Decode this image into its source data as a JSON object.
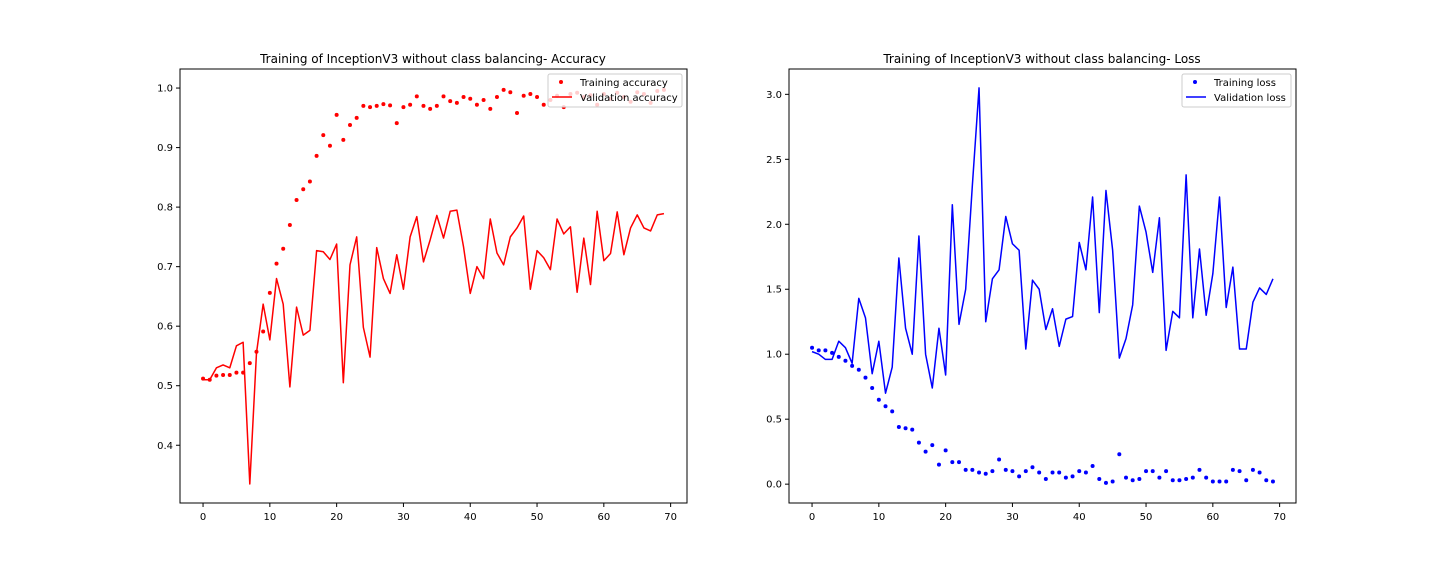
{
  "chart_data": [
    {
      "type": "line",
      "title": "Training of InceptionV3 without class balancing- Accuracy",
      "xlim": [
        -3.45,
        72.45
      ],
      "ylim": [
        0.303,
        1.032
      ],
      "xticks": [
        0,
        10,
        20,
        30,
        40,
        50,
        60,
        70
      ],
      "yticks": [
        0.4,
        0.5,
        0.6,
        0.7,
        0.8,
        0.9,
        1.0
      ],
      "ytick_labels": [
        "0.4",
        "0.5",
        "0.6",
        "0.7",
        "0.8",
        "0.9",
        "1.0"
      ],
      "legend_position": "top-right",
      "color": "#ff0000",
      "series": [
        {
          "name": "Training accuracy",
          "style": "dots",
          "x": [
            0,
            1,
            2,
            3,
            4,
            5,
            6,
            7,
            8,
            9,
            10,
            11,
            12,
            13,
            14,
            15,
            16,
            17,
            18,
            19,
            20,
            21,
            22,
            23,
            24,
            25,
            26,
            27,
            28,
            29,
            30,
            31,
            32,
            33,
            34,
            35,
            36,
            37,
            38,
            39,
            40,
            41,
            42,
            43,
            44,
            45,
            46,
            47,
            48,
            49,
            50,
            51,
            52,
            53,
            54,
            55,
            56,
            57,
            58,
            59,
            60,
            61,
            62,
            63,
            64,
            65,
            66,
            67,
            68,
            69
          ],
          "values": [
            0.512,
            0.51,
            0.517,
            0.518,
            0.518,
            0.522,
            0.522,
            0.538,
            0.557,
            0.591,
            0.656,
            0.705,
            0.73,
            0.77,
            0.812,
            0.83,
            0.843,
            0.886,
            0.921,
            0.903,
            0.955,
            0.913,
            0.938,
            0.95,
            0.97,
            0.968,
            0.97,
            0.973,
            0.971,
            0.941,
            0.968,
            0.972,
            0.986,
            0.97,
            0.965,
            0.97,
            0.986,
            0.978,
            0.975,
            0.985,
            0.982,
            0.972,
            0.98,
            0.965,
            0.985,
            0.997,
            0.993,
            0.958,
            0.987,
            0.99,
            0.985,
            0.972,
            0.98,
            0.987,
            0.968,
            0.99,
            0.992,
            0.985,
            0.988,
            0.972,
            0.99,
            0.982,
            0.992,
            0.985,
            0.977,
            0.993,
            0.99,
            0.975,
            0.995,
            0.997
          ]
        },
        {
          "name": "Validation accuracy",
          "style": "line",
          "x": [
            0,
            1,
            2,
            3,
            4,
            5,
            6,
            7,
            8,
            9,
            10,
            11,
            12,
            13,
            14,
            15,
            16,
            17,
            18,
            19,
            20,
            21,
            22,
            23,
            24,
            25,
            26,
            27,
            28,
            29,
            30,
            31,
            32,
            33,
            34,
            35,
            36,
            37,
            38,
            39,
            40,
            41,
            42,
            43,
            44,
            45,
            46,
            47,
            48,
            49,
            50,
            51,
            52,
            53,
            54,
            55,
            56,
            57,
            58,
            59,
            60,
            61,
            62,
            63,
            64,
            65,
            66,
            67,
            68,
            69
          ],
          "values": [
            0.51,
            0.51,
            0.53,
            0.535,
            0.53,
            0.567,
            0.573,
            0.335,
            0.555,
            0.637,
            0.577,
            0.68,
            0.637,
            0.498,
            0.632,
            0.585,
            0.593,
            0.727,
            0.725,
            0.712,
            0.738,
            0.505,
            0.703,
            0.75,
            0.598,
            0.548,
            0.732,
            0.68,
            0.655,
            0.72,
            0.662,
            0.75,
            0.784,
            0.708,
            0.745,
            0.786,
            0.748,
            0.793,
            0.795,
            0.733,
            0.655,
            0.7,
            0.68,
            0.78,
            0.723,
            0.703,
            0.75,
            0.765,
            0.785,
            0.662,
            0.727,
            0.715,
            0.695,
            0.78,
            0.755,
            0.767,
            0.657,
            0.748,
            0.67,
            0.793,
            0.71,
            0.722,
            0.792,
            0.72,
            0.765,
            0.787,
            0.765,
            0.76,
            0.787,
            0.789
          ]
        }
      ]
    },
    {
      "type": "line",
      "title": "Training of InceptionV3 without class balancing- Loss",
      "xlim": [
        -3.45,
        72.45
      ],
      "ylim": [
        -0.145,
        3.195
      ],
      "xticks": [
        0,
        10,
        20,
        30,
        40,
        50,
        60,
        70
      ],
      "yticks": [
        0.0,
        0.5,
        1.0,
        1.5,
        2.0,
        2.5,
        3.0
      ],
      "ytick_labels": [
        "0.0",
        "0.5",
        "1.0",
        "1.5",
        "2.0",
        "2.5",
        "3.0"
      ],
      "legend_position": "top-right",
      "color": "#0000ff",
      "series": [
        {
          "name": "Training loss",
          "style": "dots",
          "x": [
            0,
            1,
            2,
            3,
            4,
            5,
            6,
            7,
            8,
            9,
            10,
            11,
            12,
            13,
            14,
            15,
            16,
            17,
            18,
            19,
            20,
            21,
            22,
            23,
            24,
            25,
            26,
            27,
            28,
            29,
            30,
            31,
            32,
            33,
            34,
            35,
            36,
            37,
            38,
            39,
            40,
            41,
            42,
            43,
            44,
            45,
            46,
            47,
            48,
            49,
            50,
            51,
            52,
            53,
            54,
            55,
            56,
            57,
            58,
            59,
            60,
            61,
            62,
            63,
            64,
            65,
            66,
            67,
            68,
            69
          ],
          "values": [
            1.05,
            1.03,
            1.03,
            1.01,
            0.98,
            0.95,
            0.91,
            0.88,
            0.82,
            0.74,
            0.65,
            0.6,
            0.56,
            0.44,
            0.43,
            0.42,
            0.32,
            0.25,
            0.3,
            0.15,
            0.26,
            0.17,
            0.17,
            0.11,
            0.11,
            0.09,
            0.08,
            0.1,
            0.19,
            0.11,
            0.1,
            0.06,
            0.1,
            0.13,
            0.09,
            0.04,
            0.09,
            0.09,
            0.05,
            0.06,
            0.1,
            0.09,
            0.14,
            0.04,
            0.01,
            0.02,
            0.23,
            0.05,
            0.03,
            0.04,
            0.1,
            0.1,
            0.05,
            0.1,
            0.03,
            0.03,
            0.04,
            0.05,
            0.11,
            0.05,
            0.02,
            0.02,
            0.02,
            0.11,
            0.1,
            0.03,
            0.11,
            0.09,
            0.03,
            0.02
          ]
        },
        {
          "name": "Validation loss",
          "style": "line",
          "x": [
            0,
            1,
            2,
            3,
            4,
            5,
            6,
            7,
            8,
            9,
            10,
            11,
            12,
            13,
            14,
            15,
            16,
            17,
            18,
            19,
            20,
            21,
            22,
            23,
            24,
            25,
            26,
            27,
            28,
            29,
            30,
            31,
            32,
            33,
            34,
            35,
            36,
            37,
            38,
            39,
            40,
            41,
            42,
            43,
            44,
            45,
            46,
            47,
            48,
            49,
            50,
            51,
            52,
            53,
            54,
            55,
            56,
            57,
            58,
            59,
            60,
            61,
            62,
            63,
            64,
            65,
            66,
            67,
            68,
            69
          ],
          "values": [
            1.02,
            1.0,
            0.96,
            0.96,
            1.1,
            1.05,
            0.93,
            1.43,
            1.28,
            0.85,
            1.1,
            0.7,
            0.9,
            1.74,
            1.2,
            1.0,
            1.91,
            1.0,
            0.74,
            1.2,
            0.84,
            2.15,
            1.23,
            1.5,
            2.3,
            3.05,
            1.25,
            1.58,
            1.65,
            2.06,
            1.85,
            1.8,
            1.04,
            1.57,
            1.5,
            1.19,
            1.35,
            1.06,
            1.27,
            1.29,
            1.86,
            1.65,
            2.21,
            1.32,
            2.26,
            1.8,
            0.97,
            1.12,
            1.38,
            2.14,
            1.94,
            1.63,
            2.05,
            1.03,
            1.33,
            1.28,
            2.38,
            1.28,
            1.81,
            1.3,
            1.62,
            2.21,
            1.36,
            1.67,
            1.04,
            1.04,
            1.4,
            1.51,
            1.46,
            1.58
          ]
        }
      ]
    }
  ]
}
